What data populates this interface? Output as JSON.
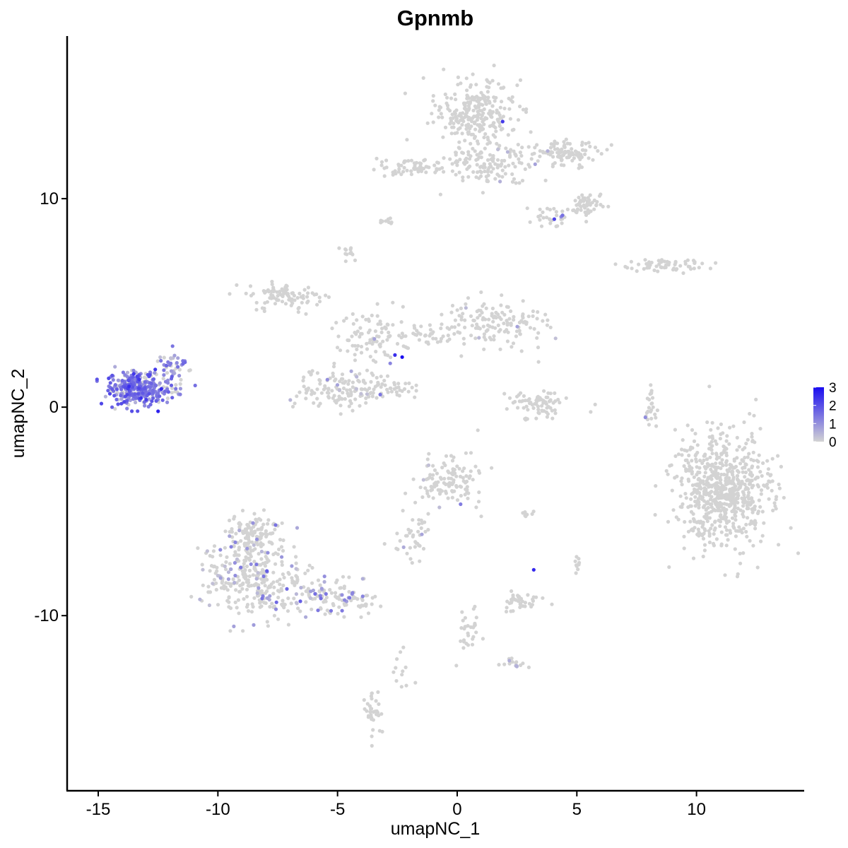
{
  "chart_data": {
    "type": "scatter",
    "title": "Gpnmb",
    "xlabel": "umapNC_1",
    "ylabel": "umapNC_2",
    "xlim": [
      -16.3,
      14.5
    ],
    "ylim": [
      -18.4,
      17.8
    ],
    "xticks": [
      -15,
      -10,
      -5,
      0,
      5,
      10
    ],
    "xtick_labels": [
      "-15",
      "-10",
      "-5",
      "0",
      "5",
      "10"
    ],
    "yticks": [
      -10,
      0,
      10
    ],
    "ytick_labels": [
      "-10",
      "0",
      "10"
    ],
    "grid": false,
    "legend": {
      "position": "right",
      "type": "colorbar",
      "min": 0,
      "max": 3,
      "ticks": [
        0,
        1,
        2,
        3
      ],
      "tick_labels": [
        "0",
        "1",
        "2",
        "3"
      ],
      "low_color": "#d3d3d3",
      "high_color": "#1a0df0"
    },
    "clusters": [
      {
        "id": "upper-right-main",
        "cx": 0.7,
        "cy": 14.1,
        "rx": 1.5,
        "ry": 1.5,
        "n": 260,
        "expressing_fraction": 0.0,
        "mean_expression": 0
      },
      {
        "id": "upper-right-stem",
        "cx": 1.3,
        "cy": 11.6,
        "rx": 1.6,
        "ry": 1.0,
        "n": 120,
        "expressing_fraction": 0.01,
        "mean_expression": 0.5
      },
      {
        "id": "upper-right-arm",
        "cx": 4.2,
        "cy": 12.2,
        "rx": 1.6,
        "ry": 0.6,
        "n": 110,
        "expressing_fraction": 0.03,
        "mean_expression": 0.7
      },
      {
        "id": "upper-right-lobe",
        "cx": 5.4,
        "cy": 9.7,
        "rx": 0.6,
        "ry": 0.5,
        "n": 60,
        "expressing_fraction": 0.03,
        "mean_expression": 0.5
      },
      {
        "id": "upper-right-tail",
        "cx": 4.0,
        "cy": 9.2,
        "rx": 0.7,
        "ry": 0.5,
        "n": 30,
        "expressing_fraction": 0.05,
        "mean_expression": 1.2
      },
      {
        "id": "upper-left-strip",
        "cx": -1.8,
        "cy": 11.5,
        "rx": 1.7,
        "ry": 0.4,
        "n": 70,
        "expressing_fraction": 0.0,
        "mean_expression": 0
      },
      {
        "id": "small-top-1",
        "cx": -3.0,
        "cy": 8.9,
        "rx": 0.3,
        "ry": 0.15,
        "n": 10,
        "expressing_fraction": 0.0,
        "mean_expression": 0
      },
      {
        "id": "small-top-2",
        "cx": -4.6,
        "cy": 7.4,
        "rx": 0.3,
        "ry": 0.3,
        "n": 12,
        "expressing_fraction": 0.0,
        "mean_expression": 0
      },
      {
        "id": "right-strip",
        "cx": 8.7,
        "cy": 6.8,
        "rx": 1.6,
        "ry": 0.3,
        "n": 60,
        "expressing_fraction": 0.02,
        "mean_expression": 0.5
      },
      {
        "id": "center-left-arm",
        "cx": -7.2,
        "cy": 5.3,
        "rx": 1.4,
        "ry": 0.6,
        "n": 90,
        "expressing_fraction": 0.0,
        "mean_expression": 0
      },
      {
        "id": "center-right-arm",
        "cx": 1.6,
        "cy": 4.0,
        "rx": 1.9,
        "ry": 1.0,
        "n": 140,
        "expressing_fraction": 0.02,
        "mean_expression": 0.6
      },
      {
        "id": "center-body",
        "cx": -3.7,
        "cy": 3.3,
        "rx": 1.6,
        "ry": 1.2,
        "n": 90,
        "expressing_fraction": 0.01,
        "mean_expression": 0.5
      },
      {
        "id": "center-lower",
        "cx": -4.7,
        "cy": 0.8,
        "rx": 1.7,
        "ry": 0.9,
        "n": 140,
        "expressing_fraction": 0.02,
        "mean_expression": 0.5
      },
      {
        "id": "center-bridge",
        "cx": -1.6,
        "cy": 3.4,
        "rx": 1.3,
        "ry": 0.5,
        "n": 40,
        "expressing_fraction": 0.05,
        "mean_expression": 1.0
      },
      {
        "id": "center-tail",
        "cx": -2.3,
        "cy": 0.9,
        "rx": 0.9,
        "ry": 0.3,
        "n": 25,
        "expressing_fraction": 0.0,
        "mean_expression": 0
      },
      {
        "id": "left-expressing",
        "cx": -13.3,
        "cy": 0.9,
        "rx": 1.2,
        "ry": 0.75,
        "n": 330,
        "expressing_fraction": 0.8,
        "mean_expression": 1.4
      },
      {
        "id": "left-expressing-tip",
        "cx": -11.8,
        "cy": 2.0,
        "rx": 0.6,
        "ry": 0.6,
        "n": 40,
        "expressing_fraction": 0.6,
        "mean_expression": 1.1
      },
      {
        "id": "mid-ring",
        "cx": 3.4,
        "cy": 0.1,
        "rx": 1.2,
        "ry": 0.6,
        "n": 80,
        "expressing_fraction": 0.0,
        "mean_expression": 0
      },
      {
        "id": "mid-right-arc",
        "cx": 8.1,
        "cy": 0.0,
        "rx": 0.25,
        "ry": 1.0,
        "n": 25,
        "expressing_fraction": 0.04,
        "mean_expression": 0.5
      },
      {
        "id": "right-large",
        "cx": 11.1,
        "cy": -4.0,
        "rx": 1.8,
        "ry": 2.4,
        "n": 700,
        "expressing_fraction": 0.0,
        "mean_expression": 0
      },
      {
        "id": "lower-center-blob",
        "cx": -0.4,
        "cy": -3.7,
        "rx": 1.2,
        "ry": 1.1,
        "n": 120,
        "expressing_fraction": 0.02,
        "mean_expression": 0.5
      },
      {
        "id": "lower-center-streak",
        "cx": -1.8,
        "cy": -6.3,
        "rx": 0.8,
        "ry": 1.2,
        "n": 40,
        "expressing_fraction": 0.05,
        "mean_expression": 0.7
      },
      {
        "id": "lower-left-big",
        "cx": -8.6,
        "cy": -8.2,
        "rx": 1.8,
        "ry": 1.8,
        "n": 300,
        "expressing_fraction": 0.15,
        "mean_expression": 0.8
      },
      {
        "id": "lower-left-top",
        "cx": -8.5,
        "cy": -6.0,
        "rx": 1.0,
        "ry": 0.8,
        "n": 110,
        "expressing_fraction": 0.05,
        "mean_expression": 0.6
      },
      {
        "id": "lower-left-tail",
        "cx": -5.4,
        "cy": -9.2,
        "rx": 1.9,
        "ry": 0.8,
        "n": 130,
        "expressing_fraction": 0.2,
        "mean_expression": 0.9
      },
      {
        "id": "lower-small-1",
        "cx": 2.7,
        "cy": -9.4,
        "rx": 0.8,
        "ry": 0.4,
        "n": 40,
        "expressing_fraction": 0.0,
        "mean_expression": 0
      },
      {
        "id": "lower-small-2",
        "cx": 5.0,
        "cy": -7.5,
        "rx": 0.15,
        "ry": 0.35,
        "n": 10,
        "expressing_fraction": 0.0,
        "mean_expression": 0
      },
      {
        "id": "lower-small-3",
        "cx": 2.8,
        "cy": -5.1,
        "rx": 0.35,
        "ry": 0.15,
        "n": 8,
        "expressing_fraction": 0.0,
        "mean_expression": 0
      },
      {
        "id": "lower-small-4",
        "cx": -2.3,
        "cy": -12.5,
        "rx": 0.6,
        "ry": 1.3,
        "n": 12,
        "expressing_fraction": 0.0,
        "mean_expression": 0
      },
      {
        "id": "lower-trail",
        "cx": 0.5,
        "cy": -10.8,
        "rx": 0.6,
        "ry": 1.2,
        "n": 30,
        "expressing_fraction": 0.03,
        "mean_expression": 0.5
      },
      {
        "id": "bottom-small",
        "cx": -3.5,
        "cy": -14.6,
        "rx": 0.35,
        "ry": 0.9,
        "n": 35,
        "expressing_fraction": 0.0,
        "mean_expression": 0
      },
      {
        "id": "lower-right-cluster",
        "cx": 2.4,
        "cy": -12.3,
        "rx": 0.45,
        "ry": 0.25,
        "n": 15,
        "expressing_fraction": 0.2,
        "mean_expression": 0.7
      }
    ],
    "notable_points": [
      {
        "x": -2.3,
        "y": 2.4,
        "value": 3
      },
      {
        "x": -2.6,
        "y": 2.5,
        "value": 2.5
      },
      {
        "x": 3.2,
        "y": -7.8,
        "value": 2.6
      },
      {
        "x": 1.9,
        "y": 13.7,
        "value": 2.3
      },
      {
        "x": -12.5,
        "y": -0.2,
        "value": 2.7
      },
      {
        "x": -2.8,
        "y": 2.1,
        "value": 1.2
      },
      {
        "x": 4.4,
        "y": 9.2,
        "value": 1.5
      }
    ]
  }
}
